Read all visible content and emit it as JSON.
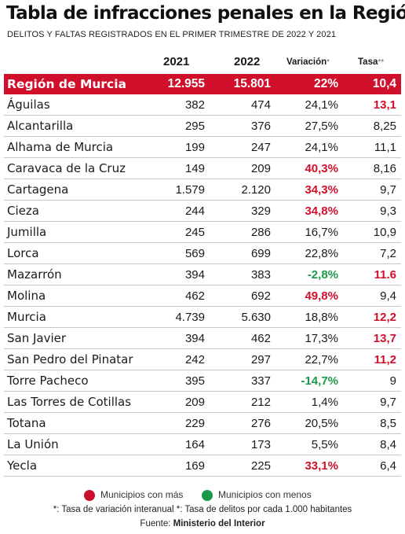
{
  "chart_data": {
    "type": "table",
    "title": "Tabla de infracciones penales en la Región",
    "subtitle": "DELITOS Y FALTAS REGISTRADOS EN EL PRIMER TRIMESTRE DE 2022 Y 2021",
    "columns": {
      "y2021": "2021",
      "y2022": "2022",
      "variacion": "Variación",
      "variacion_mark": "*",
      "tasa": "Tasa",
      "tasa_mark": "**"
    },
    "region": {
      "name": "Región de Murcia",
      "y2021": "12.955",
      "y2022": "15.801",
      "variacion": "22%",
      "tasa": "10,4"
    },
    "rows": [
      {
        "name": "Águilas",
        "y2021": "382",
        "y2022": "474",
        "variacion": "24,1%",
        "var_flag": "",
        "tasa": "13,1",
        "tasa_flag": "red"
      },
      {
        "name": "Alcantarilla",
        "y2021": "295",
        "y2022": "376",
        "variacion": "27,5%",
        "var_flag": "",
        "tasa": "8,25",
        "tasa_flag": ""
      },
      {
        "name": "Alhama de Murcia",
        "y2021": "199",
        "y2022": "247",
        "variacion": "24,1%",
        "var_flag": "",
        "tasa": "11,1",
        "tasa_flag": ""
      },
      {
        "name": "Caravaca de la Cruz",
        "y2021": "149",
        "y2022": "209",
        "variacion": "40,3%",
        "var_flag": "red",
        "tasa": "8,16",
        "tasa_flag": ""
      },
      {
        "name": "Cartagena",
        "y2021": "1.579",
        "y2022": "2.120",
        "variacion": "34,3%",
        "var_flag": "red",
        "tasa": "9,7",
        "tasa_flag": ""
      },
      {
        "name": "Cieza",
        "y2021": "244",
        "y2022": "329",
        "variacion": "34,8%",
        "var_flag": "red",
        "tasa": "9,3",
        "tasa_flag": ""
      },
      {
        "name": "Jumilla",
        "y2021": "245",
        "y2022": "286",
        "variacion": "16,7%",
        "var_flag": "",
        "tasa": "10,9",
        "tasa_flag": ""
      },
      {
        "name": "Lorca",
        "y2021": "569",
        "y2022": "699",
        "variacion": "22,8%",
        "var_flag": "",
        "tasa": "7,2",
        "tasa_flag": ""
      },
      {
        "name": "Mazarrón",
        "y2021": "394",
        "y2022": "383",
        "variacion": "-2,8%",
        "var_flag": "green",
        "tasa": "11.6",
        "tasa_flag": "red"
      },
      {
        "name": "Molina",
        "y2021": "462",
        "y2022": "692",
        "variacion": "49,8%",
        "var_flag": "red",
        "tasa": "9,4",
        "tasa_flag": ""
      },
      {
        "name": "Murcia",
        "y2021": "4.739",
        "y2022": "5.630",
        "variacion": "18,8%",
        "var_flag": "",
        "tasa": "12,2",
        "tasa_flag": "red"
      },
      {
        "name": "San Javier",
        "y2021": "394",
        "y2022": "462",
        "variacion": "17,3%",
        "var_flag": "",
        "tasa": "13,7",
        "tasa_flag": "red"
      },
      {
        "name": "San Pedro del Pinatar",
        "y2021": "242",
        "y2022": "297",
        "variacion": "22,7%",
        "var_flag": "",
        "tasa": "11,2",
        "tasa_flag": "red"
      },
      {
        "name": "Torre Pacheco",
        "y2021": "395",
        "y2022": "337",
        "variacion": "-14,7%",
        "var_flag": "green",
        "tasa": "9",
        "tasa_flag": ""
      },
      {
        "name": "Las Torres de Cotillas",
        "y2021": "209",
        "y2022": "212",
        "variacion": "1,4%",
        "var_flag": "",
        "tasa": "9,7",
        "tasa_flag": ""
      },
      {
        "name": "Totana",
        "y2021": "229",
        "y2022": "276",
        "variacion": "20,5%",
        "var_flag": "",
        "tasa": "8,5",
        "tasa_flag": ""
      },
      {
        "name": "La Unión",
        "y2021": "164",
        "y2022": "173",
        "variacion": "5,5%",
        "var_flag": "",
        "tasa": "8,4",
        "tasa_flag": ""
      },
      {
        "name": "Yecla",
        "y2021": "169",
        "y2022": "225",
        "variacion": "33,1%",
        "var_flag": "red",
        "tasa": "6,4",
        "tasa_flag": ""
      }
    ],
    "legend": {
      "more": "Municipios con más",
      "less": "Municipios con menos",
      "more_color": "#c8102e",
      "less_color": "#1a9a48"
    },
    "notes": "*: Tasa de variación interanual *: Tasa de delitos por cada 1.000 habitantes",
    "source_prefix": "Fuente:",
    "source_name": "Ministerio del Interior"
  }
}
